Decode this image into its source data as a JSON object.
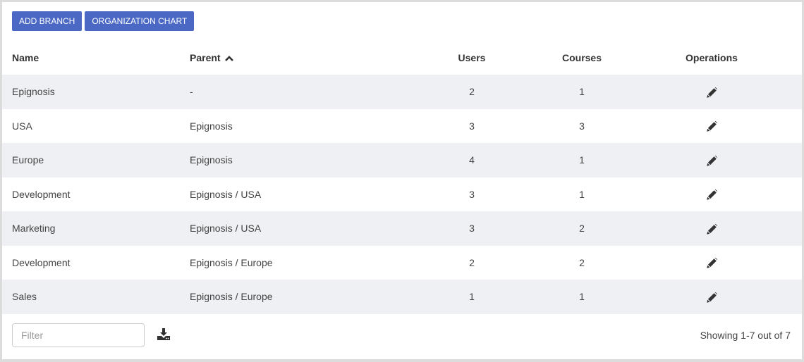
{
  "toolbar": {
    "add_branch": "ADD BRANCH",
    "org_chart": "ORGANIZATION CHART"
  },
  "colors": {
    "accent": "#4a68c4",
    "stripe": "#eff0f3"
  },
  "table": {
    "headers": {
      "name": "Name",
      "parent": "Parent",
      "users": "Users",
      "courses": "Courses",
      "operations": "Operations"
    },
    "sort": {
      "column": "Parent",
      "direction": "ascending",
      "icon": "chevron-up-icon"
    },
    "rows": [
      {
        "name": "Epignosis",
        "parent": "-",
        "users": "2",
        "courses": "1"
      },
      {
        "name": "USA",
        "parent": "Epignosis",
        "users": "3",
        "courses": "3"
      },
      {
        "name": "Europe",
        "parent": "Epignosis",
        "users": "4",
        "courses": "1"
      },
      {
        "name": "Development",
        "parent": "Epignosis / USA",
        "users": "3",
        "courses": "1"
      },
      {
        "name": "Marketing",
        "parent": "Epignosis / USA",
        "users": "3",
        "courses": "2"
      },
      {
        "name": "Development",
        "parent": "Epignosis / Europe",
        "users": "2",
        "courses": "2"
      },
      {
        "name": "Sales",
        "parent": "Epignosis / Europe",
        "users": "1",
        "courses": "1"
      }
    ]
  },
  "footer": {
    "filter_placeholder": "Filter",
    "filter_value": "",
    "showing": "Showing 1-7 out of 7"
  }
}
